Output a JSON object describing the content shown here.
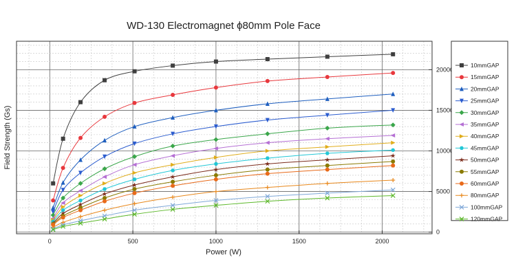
{
  "chart_data": {
    "type": "line",
    "title": "WD-130 Electromagnet ϕ80mm Pole Face",
    "xlabel": "Power (W)",
    "ylabel": "Field Strength (Gs)",
    "xlim": [
      -200,
      2300
    ],
    "ylim": [
      -200,
      23500
    ],
    "x_ticks": [
      0,
      500,
      1000,
      1500,
      2000
    ],
    "y_ticks_right": [
      0,
      5000,
      10000,
      15000,
      20000
    ],
    "grid": true,
    "legend_position": "right",
    "x": [
      20,
      80,
      185,
      330,
      510,
      740,
      1000,
      1310,
      1670,
      2065
    ],
    "series": [
      {
        "name": "10mmGAP",
        "color": "#3f3f3f",
        "marker": "square",
        "values": [
          6000,
          11500,
          16000,
          18700,
          19800,
          20500,
          21000,
          21300,
          21600,
          21900
        ]
      },
      {
        "name": "15mmGAP",
        "color": "#e8383d",
        "marker": "circle",
        "values": [
          3900,
          7900,
          11600,
          14200,
          15900,
          16900,
          17800,
          18600,
          19100,
          19600
        ]
      },
      {
        "name": "20mmGAP",
        "color": "#1f5fbf",
        "marker": "triangle-up",
        "values": [
          3000,
          6100,
          8900,
          11300,
          13000,
          14100,
          15000,
          15800,
          16400,
          17000
        ]
      },
      {
        "name": "25mmGAP",
        "color": "#2b5ccf",
        "marker": "triangle-down",
        "values": [
          2500,
          5200,
          7300,
          9300,
          10900,
          12100,
          13000,
          13800,
          14400,
          15000
        ]
      },
      {
        "name": "30mmGAP",
        "color": "#3aa64a",
        "marker": "diamond",
        "values": [
          2100,
          4200,
          6000,
          7800,
          9300,
          10600,
          11400,
          12100,
          12800,
          13200
        ]
      },
      {
        "name": "35mmGAP",
        "color": "#b56fd4",
        "marker": "triangle-left",
        "values": [
          1700,
          3600,
          5100,
          6800,
          8300,
          9400,
          10300,
          11000,
          11500,
          11900
        ]
      },
      {
        "name": "40mmGAP",
        "color": "#e0ad1b",
        "marker": "triangle-right",
        "values": [
          1500,
          3100,
          4500,
          6000,
          7300,
          8300,
          9200,
          10000,
          10500,
          11000
        ]
      },
      {
        "name": "45mmGAP",
        "color": "#22c7d6",
        "marker": "hexagon",
        "values": [
          1300,
          2700,
          3900,
          5300,
          6500,
          7600,
          8400,
          9100,
          9700,
          10100
        ]
      },
      {
        "name": "50mmGAP",
        "color": "#7a2a1a",
        "marker": "star",
        "values": [
          1100,
          2300,
          3400,
          4700,
          5800,
          6800,
          7700,
          8400,
          8900,
          9400
        ]
      },
      {
        "name": "55mmGAP",
        "color": "#8a7a00",
        "marker": "circle",
        "values": [
          1000,
          2000,
          3000,
          4200,
          5300,
          6200,
          7000,
          7700,
          8200,
          8700
        ]
      },
      {
        "name": "60mmGAP",
        "color": "#e86a1a",
        "marker": "circle",
        "values": [
          900,
          1800,
          2700,
          3800,
          4800,
          5700,
          6500,
          7200,
          7700,
          8200
        ]
      },
      {
        "name": "80mmGAP",
        "color": "#e8871a",
        "marker": "plus",
        "values": [
          600,
          1200,
          1900,
          2700,
          3500,
          4300,
          5000,
          5500,
          6000,
          6400
        ]
      },
      {
        "name": "100mmGAP",
        "color": "#7fa8d8",
        "marker": "x",
        "values": [
          400,
          900,
          1400,
          2000,
          2700,
          3300,
          3900,
          4400,
          4800,
          5200
        ]
      },
      {
        "name": "120mmGAP",
        "color": "#5cb82a",
        "marker": "x",
        "values": [
          300,
          700,
          1100,
          1600,
          2200,
          2800,
          3300,
          3800,
          4200,
          4500
        ]
      }
    ]
  }
}
